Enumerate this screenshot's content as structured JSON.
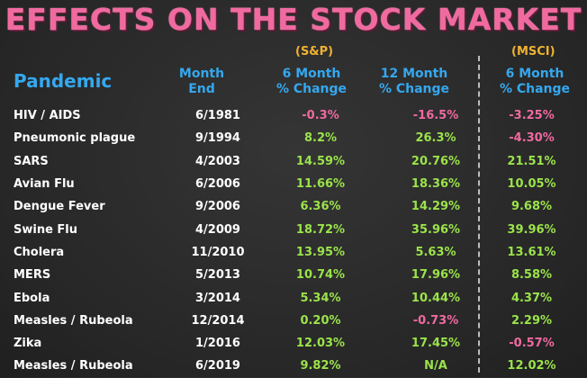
{
  "title": "EFFECTS ON THE STOCK MARKET",
  "sources": {
    "sp": "(S&P)",
    "msci": "(MSCI)"
  },
  "headers": {
    "pandemic": "Pandemic",
    "month_end_1": "Month",
    "month_end_2": "End",
    "six_month_sp_1": "6 Month",
    "six_month_sp_2": "% Change",
    "twelve_month_sp_1": "12 Month",
    "twelve_month_sp_2": "% Change",
    "six_month_msci_1": "6 Month",
    "six_month_msci_2": "% Change"
  },
  "colors": {
    "title": "#f06aa0",
    "header": "#35a8ee",
    "source": "#f0b232",
    "positive": "#9be34a",
    "negative": "#f06aa0",
    "background": "#2b2b2b"
  },
  "rows": [
    {
      "pandemic": "HIV / AIDS",
      "month_end": "6/1981",
      "sp_6m": "-0.3%",
      "sp_12m": "-16.5%",
      "msci_6m": "-3.25%"
    },
    {
      "pandemic": "Pneumonic plague",
      "month_end": "9/1994",
      "sp_6m": "8.2%",
      "sp_12m": "26.3%",
      "msci_6m": "-4.30%"
    },
    {
      "pandemic": "SARS",
      "month_end": "4/2003",
      "sp_6m": "14.59%",
      "sp_12m": "20.76%",
      "msci_6m": "21.51%"
    },
    {
      "pandemic": "Avian Flu",
      "month_end": "6/2006",
      "sp_6m": "11.66%",
      "sp_12m": "18.36%",
      "msci_6m": "10.05%"
    },
    {
      "pandemic": "Dengue Fever",
      "month_end": "9/2006",
      "sp_6m": "6.36%",
      "sp_12m": "14.29%",
      "msci_6m": "9.68%"
    },
    {
      "pandemic": "Swine Flu",
      "month_end": "4/2009",
      "sp_6m": "18.72%",
      "sp_12m": "35.96%",
      "msci_6m": "39.96%"
    },
    {
      "pandemic": "Cholera",
      "month_end": "11/2010",
      "sp_6m": "13.95%",
      "sp_12m": "5.63%",
      "msci_6m": "13.61%"
    },
    {
      "pandemic": "MERS",
      "month_end": "5/2013",
      "sp_6m": "10.74%",
      "sp_12m": "17.96%",
      "msci_6m": "8.58%"
    },
    {
      "pandemic": "Ebola",
      "month_end": "3/2014",
      "sp_6m": "5.34%",
      "sp_12m": "10.44%",
      "msci_6m": "4.37%"
    },
    {
      "pandemic": "Measles / Rubeola",
      "month_end": "12/2014",
      "sp_6m": "0.20%",
      "sp_12m": "-0.73%",
      "msci_6m": "2.29%"
    },
    {
      "pandemic": "Zika",
      "month_end": "1/2016",
      "sp_6m": "12.03%",
      "sp_12m": "17.45%",
      "msci_6m": "-0.57%"
    },
    {
      "pandemic": "Measles / Rubeola",
      "month_end": "6/2019",
      "sp_6m": "9.82%",
      "sp_12m": "N/A",
      "msci_6m": "12.02%"
    }
  ]
}
